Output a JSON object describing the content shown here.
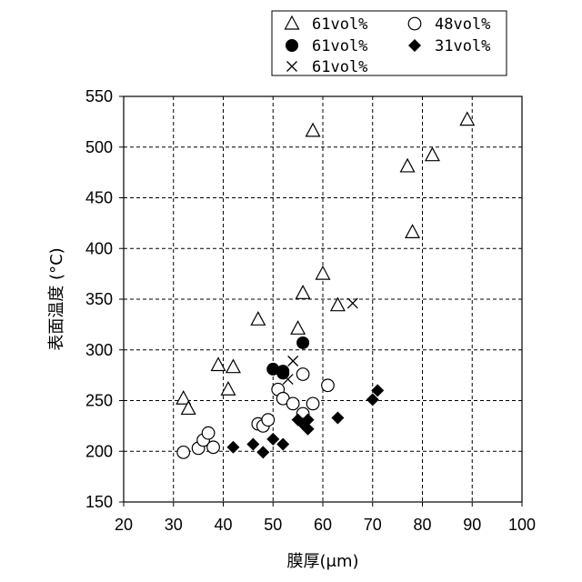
{
  "chart_data": {
    "type": "scatter",
    "xlabel": "膜厚(μm)",
    "ylabel": "表面温度 (°C)",
    "xlim": [
      20,
      100
    ],
    "ylim": [
      150,
      550
    ],
    "xticks": [
      20,
      30,
      40,
      50,
      60,
      70,
      80,
      90,
      100
    ],
    "yticks": [
      150,
      200,
      250,
      300,
      350,
      400,
      450,
      500,
      550
    ],
    "grid": true,
    "legend_position": "top-right, above plot",
    "series": [
      {
        "name": "61vol%",
        "marker": "open-triangle",
        "points": [
          [
            32,
            252
          ],
          [
            33,
            242
          ],
          [
            39,
            285
          ],
          [
            41,
            261
          ],
          [
            42,
            283
          ],
          [
            47,
            330
          ],
          [
            55,
            321
          ],
          [
            56,
            356
          ],
          [
            58,
            516
          ],
          [
            60,
            375
          ],
          [
            63,
            344
          ],
          [
            77,
            481
          ],
          [
            78,
            416
          ],
          [
            82,
            492
          ],
          [
            89,
            527
          ]
        ]
      },
      {
        "name": "61vol%",
        "marker": "filled-circle",
        "points": [
          [
            50,
            281
          ],
          [
            52,
            279
          ],
          [
            52,
            277
          ],
          [
            56,
            307
          ]
        ]
      },
      {
        "name": "61vol%",
        "marker": "x",
        "points": [
          [
            53,
            271
          ],
          [
            54,
            289
          ],
          [
            66,
            346
          ]
        ]
      },
      {
        "name": "48vol%",
        "marker": "open-circle",
        "points": [
          [
            32,
            199
          ],
          [
            35,
            203
          ],
          [
            36,
            211
          ],
          [
            37,
            218
          ],
          [
            38,
            204
          ],
          [
            47,
            227
          ],
          [
            48,
            225
          ],
          [
            49,
            231
          ],
          [
            51,
            261
          ],
          [
            52,
            252
          ],
          [
            54,
            247
          ],
          [
            56,
            276
          ],
          [
            56,
            237
          ],
          [
            58,
            247
          ],
          [
            61,
            265
          ]
        ]
      },
      {
        "name": "31vol%",
        "marker": "filled-diamond",
        "points": [
          [
            42,
            204
          ],
          [
            46,
            207
          ],
          [
            48,
            199
          ],
          [
            50,
            212
          ],
          [
            52,
            207
          ],
          [
            55,
            231
          ],
          [
            56,
            227
          ],
          [
            57,
            222
          ],
          [
            57,
            231
          ],
          [
            63,
            233
          ],
          [
            70,
            251
          ],
          [
            71,
            260
          ]
        ]
      }
    ]
  }
}
